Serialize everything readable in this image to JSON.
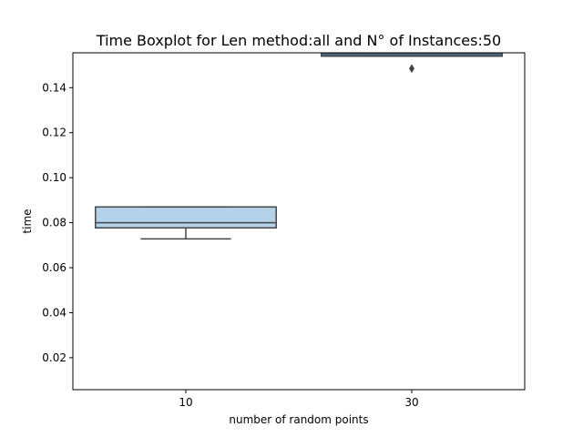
{
  "chart_data": {
    "type": "boxplot",
    "title": "Time Boxplot for Len method:all and N° of Instances:50",
    "xlabel": "number of random points",
    "ylabel": "time",
    "ylim": [
      0.0058,
      0.1555
    ],
    "yticks": [
      0.02,
      0.04,
      0.06,
      0.08,
      0.1,
      0.12,
      0.14
    ],
    "ytick_labels": [
      "0.02",
      "0.04",
      "0.06",
      "0.08",
      "0.10",
      "0.12",
      "0.14"
    ],
    "categories": [
      "10",
      "30"
    ],
    "grid": false,
    "colors": {
      "box_10": "#b3d1e8",
      "box_30": "#4d6a82",
      "line": "#444444"
    },
    "boxes": [
      {
        "category": "10",
        "whisker_low": 0.0728,
        "q1": 0.0777,
        "median": 0.08,
        "q3": 0.087,
        "whisker_high": 0.087,
        "outliers": []
      },
      {
        "category": "30",
        "whisker_low": 0.154,
        "q1": 0.154,
        "median": 0.1555,
        "q3": 0.157,
        "whisker_high": 0.157,
        "outliers": [
          0.1485
        ]
      }
    ]
  }
}
